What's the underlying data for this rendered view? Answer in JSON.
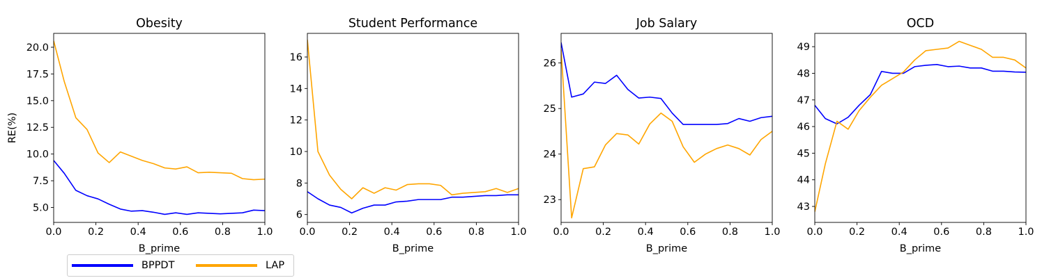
{
  "chart_data": [
    {
      "type": "line",
      "title": "Obesity",
      "xlabel": "B_prime",
      "ylabel": "RE(%)",
      "xlim": [
        0,
        1
      ],
      "ylim": [
        3.6,
        21.3
      ],
      "xticks": [
        "0.0",
        "0.2",
        "0.4",
        "0.6",
        "0.8",
        "1.0"
      ],
      "yticks": [
        "5.0",
        "7.5",
        "10.0",
        "12.5",
        "15.0",
        "17.5",
        "20.0"
      ],
      "x": [
        0.0,
        0.05,
        0.105,
        0.158,
        0.21,
        0.263,
        0.316,
        0.368,
        0.42,
        0.473,
        0.526,
        0.578,
        0.631,
        0.684,
        0.736,
        0.789,
        0.842,
        0.894,
        0.947,
        1.0
      ],
      "series": [
        {
          "name": "BPPDT",
          "values": [
            9.4,
            8.2,
            6.6,
            6.1,
            5.8,
            5.3,
            4.85,
            4.65,
            4.7,
            4.55,
            4.35,
            4.5,
            4.35,
            4.5,
            4.45,
            4.4,
            4.45,
            4.5,
            4.75,
            4.7
          ]
        },
        {
          "name": "LAP",
          "values": [
            20.6,
            16.8,
            13.4,
            12.3,
            10.1,
            9.2,
            10.2,
            9.8,
            9.4,
            9.1,
            8.7,
            8.6,
            8.8,
            8.25,
            8.3,
            8.25,
            8.2,
            7.7,
            7.6,
            7.65
          ]
        }
      ]
    },
    {
      "type": "line",
      "title": "Student Performance",
      "xlabel": "B_prime",
      "ylabel": "",
      "xlim": [
        0,
        1
      ],
      "ylim": [
        5.5,
        17.5
      ],
      "xticks": [
        "0.0",
        "0.2",
        "0.4",
        "0.6",
        "0.8",
        "1.0"
      ],
      "yticks": [
        "6",
        "8",
        "10",
        "12",
        "14",
        "16"
      ],
      "x": [
        0.0,
        0.05,
        0.105,
        0.158,
        0.21,
        0.263,
        0.316,
        0.368,
        0.42,
        0.473,
        0.526,
        0.578,
        0.631,
        0.684,
        0.736,
        0.789,
        0.842,
        0.894,
        0.947,
        1.0
      ],
      "series": [
        {
          "name": "BPPDT",
          "values": [
            7.45,
            7.0,
            6.6,
            6.45,
            6.1,
            6.4,
            6.6,
            6.6,
            6.8,
            6.85,
            6.95,
            6.95,
            6.95,
            7.1,
            7.1,
            7.15,
            7.2,
            7.2,
            7.25,
            7.25
          ]
        },
        {
          "name": "LAP",
          "values": [
            17.1,
            10.0,
            8.5,
            7.6,
            7.0,
            7.7,
            7.35,
            7.7,
            7.55,
            7.9,
            7.95,
            7.95,
            7.85,
            7.25,
            7.35,
            7.4,
            7.45,
            7.65,
            7.4,
            7.65
          ]
        }
      ]
    },
    {
      "type": "line",
      "title": "Job Salary",
      "xlabel": "B_prime",
      "ylabel": "",
      "xlim": [
        0,
        1
      ],
      "ylim": [
        22.5,
        26.65
      ],
      "xticks": [
        "0.0",
        "0.2",
        "0.4",
        "0.6",
        "0.8",
        "1.0"
      ],
      "yticks": [
        "23",
        "24",
        "25",
        "26"
      ],
      "x": [
        0.0,
        0.05,
        0.105,
        0.158,
        0.21,
        0.263,
        0.316,
        0.368,
        0.42,
        0.473,
        0.526,
        0.578,
        0.631,
        0.684,
        0.736,
        0.789,
        0.842,
        0.894,
        0.947,
        1.0
      ],
      "series": [
        {
          "name": "BPPDT",
          "values": [
            26.45,
            25.25,
            25.32,
            25.58,
            25.55,
            25.73,
            25.42,
            25.23,
            25.25,
            25.22,
            24.9,
            24.65,
            24.65,
            24.65,
            24.65,
            24.67,
            24.78,
            24.72,
            24.8,
            24.83
          ]
        },
        {
          "name": "LAP",
          "values": [
            26.3,
            22.6,
            23.68,
            23.72,
            24.2,
            24.45,
            24.42,
            24.22,
            24.66,
            24.9,
            24.72,
            24.16,
            23.82,
            24.0,
            24.12,
            24.2,
            24.12,
            23.98,
            24.32,
            24.5
          ]
        }
      ]
    },
    {
      "type": "line",
      "title": "OCD",
      "xlabel": "B_prime",
      "ylabel": "",
      "xlim": [
        0,
        1
      ],
      "ylim": [
        42.4,
        49.5
      ],
      "xticks": [
        "0.0",
        "0.2",
        "0.4",
        "0.6",
        "0.8",
        "1.0"
      ],
      "yticks": [
        "43",
        "44",
        "45",
        "46",
        "47",
        "48",
        "49"
      ],
      "x": [
        0.0,
        0.05,
        0.105,
        0.158,
        0.21,
        0.263,
        0.316,
        0.368,
        0.42,
        0.473,
        0.526,
        0.578,
        0.631,
        0.684,
        0.736,
        0.789,
        0.842,
        0.894,
        0.947,
        1.0
      ],
      "series": [
        {
          "name": "BPPDT",
          "values": [
            46.8,
            46.3,
            46.1,
            46.35,
            46.8,
            47.2,
            48.07,
            48.0,
            48.0,
            48.25,
            48.3,
            48.33,
            48.25,
            48.27,
            48.2,
            48.2,
            48.08,
            48.08,
            48.05,
            48.04
          ]
        },
        {
          "name": "LAP",
          "values": [
            42.8,
            44.6,
            46.2,
            45.9,
            46.6,
            47.1,
            47.55,
            47.8,
            48.05,
            48.5,
            48.85,
            48.9,
            48.95,
            49.2,
            49.05,
            48.9,
            48.6,
            48.6,
            48.5,
            48.2
          ]
        }
      ]
    }
  ],
  "legend": {
    "items": [
      {
        "label": "BPPDT",
        "color": "#0000ff"
      },
      {
        "label": "LAP",
        "color": "#ffa500"
      }
    ]
  }
}
